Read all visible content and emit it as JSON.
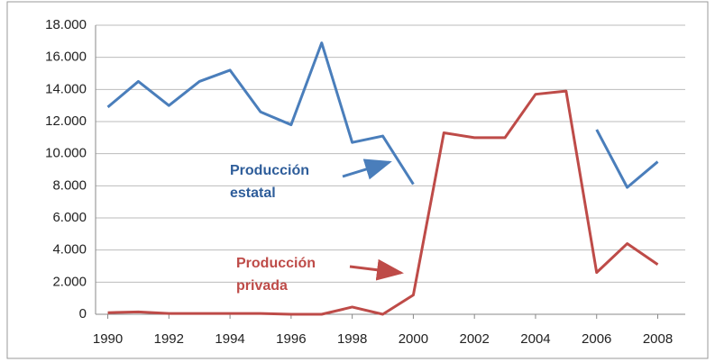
{
  "chart_data": {
    "type": "line",
    "x": [
      1990,
      1991,
      1992,
      1993,
      1994,
      1995,
      1996,
      1997,
      1998,
      1999,
      2000,
      2001,
      2002,
      2003,
      2004,
      2005,
      2006,
      2007,
      2008
    ],
    "series": [
      {
        "color": "#4a7ebb",
        "values": [
          12900,
          14500,
          13000,
          14500,
          15200,
          12600,
          11800,
          16900,
          10700,
          11100,
          8100,
          null,
          null,
          null,
          null,
          null,
          11500,
          7900,
          9500
        ]
      },
      {
        "color": "#be4b48",
        "values": [
          100,
          150,
          50,
          50,
          50,
          50,
          0,
          0,
          450,
          0,
          1200,
          11300,
          11000,
          11000,
          13700,
          13900,
          2600,
          4400,
          3100
        ]
      }
    ],
    "xlim": [
      1989.6,
      2008.9
    ],
    "xticks": [
      1990,
      1992,
      1994,
      1996,
      1998,
      2000,
      2002,
      2004,
      2006,
      2008
    ],
    "ylim": [
      0,
      18000
    ],
    "yticks": [
      0,
      {
        "value": 2000,
        "label": "2.000"
      },
      {
        "value": 4000,
        "label": "4.000"
      },
      {
        "value": 6000,
        "label": "6.000"
      },
      {
        "value": 8000,
        "label": "8.000"
      },
      {
        "value": 10000,
        "label": "10.000"
      },
      {
        "value": 12000,
        "label": "12.000"
      },
      {
        "value": 14000,
        "label": "14.000"
      },
      {
        "value": 16000,
        "label": "16.000"
      },
      {
        "value": 18000,
        "label": "18.000"
      }
    ],
    "grid": true,
    "annotations": [
      {
        "lines": [
          "Producción",
          "estatal"
        ],
        "color": "#2e5d9a"
      },
      {
        "lines": [
          "Producción",
          "privada"
        ],
        "color": "#be4b48"
      }
    ]
  }
}
